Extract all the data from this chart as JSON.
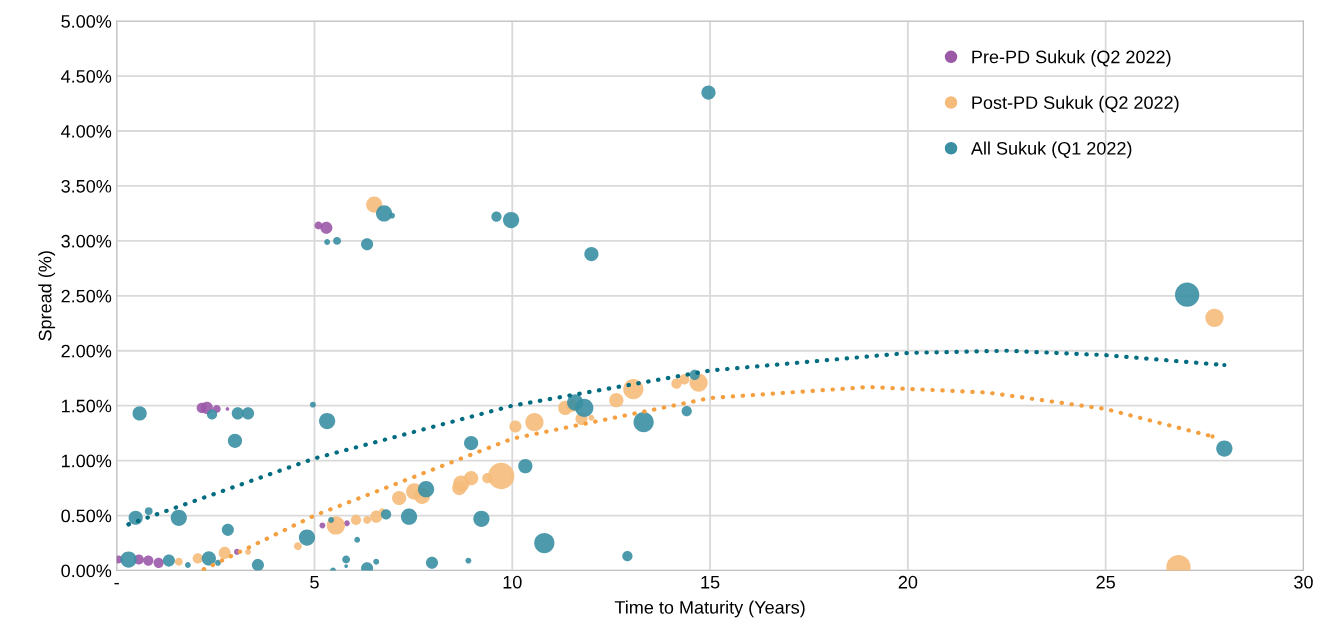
{
  "chart_data": {
    "type": "bubble",
    "xlabel": "Time to Maturity (Years)",
    "ylabel": "Spread (%)",
    "xlim": [
      0,
      30
    ],
    "ylim": [
      0,
      5
    ],
    "xticks": [
      {
        "value": 0,
        "label": "-"
      },
      5,
      10,
      15,
      20,
      25,
      30
    ],
    "yticks": [
      {
        "value": 0,
        "label": "0.00%"
      },
      {
        "value": 0.5,
        "label": "0.50%"
      },
      {
        "value": 1,
        "label": "1.00%"
      },
      {
        "value": 1.5,
        "label": "1.50%"
      },
      {
        "value": 2,
        "label": "2.00%"
      },
      {
        "value": 2.5,
        "label": "2.50%"
      },
      {
        "value": 3,
        "label": "3.00%"
      },
      {
        "value": 3.5,
        "label": "3.50%"
      },
      {
        "value": 4,
        "label": "4.00%"
      },
      {
        "value": 4.5,
        "label": "4.50%"
      },
      {
        "value": 5,
        "label": "5.00%"
      }
    ],
    "grid": true,
    "legend": "top right",
    "marker": "circle",
    "series": [
      {
        "name": "Pre-PD Sukuk (Q2 2022)",
        "color": "#9b59a8",
        "x": [
          0.05,
          0.3,
          0.56,
          0.8,
          1.06,
          2.15,
          2.28,
          2.53,
          2.8,
          3.04,
          5.2,
          5.82,
          5.1,
          5.3
        ],
        "values": [
          0.1,
          null,
          0.1,
          0.09,
          0.07,
          1.48,
          1.48,
          1.47,
          1.47,
          0.17,
          0.41,
          0.43,
          3.14,
          3.12
        ],
        "sizes": [
          0.09,
          null,
          0.15,
          0.15,
          0.15,
          0.15,
          0.21,
          0.09,
          0.02,
          0.05,
          0.05,
          0.05,
          0.09,
          0.21
        ]
      },
      {
        "name": "Post-PD Sukuk (Q2 2022)",
        "color": "#f5bb7a",
        "x": [
          1.57,
          2.05,
          2.73,
          3.32,
          4.58,
          5.54,
          6.05,
          6.33,
          6.56,
          6.71,
          7.14,
          7.52,
          7.72,
          8.66,
          8.71,
          8.96,
          9.37,
          9.72,
          10.08,
          10.56,
          11.34,
          11.52,
          11.75,
          12.0,
          12.63,
          13.06,
          14.15,
          14.35,
          14.71,
          6.51,
          27.75,
          26.84
        ],
        "values": [
          0.08,
          0.11,
          0.16,
          0.17,
          0.22,
          0.41,
          0.46,
          0.46,
          0.49,
          0.54,
          0.66,
          0.72,
          0.68,
          0.75,
          0.79,
          0.84,
          0.84,
          0.86,
          1.31,
          1.35,
          1.48,
          1.5,
          1.38,
          1.39,
          1.55,
          1.65,
          1.7,
          1.74,
          1.71,
          3.33,
          2.3,
          0.03
        ],
        "sizes": [
          0.09,
          0.15,
          0.21,
          0.05,
          0.09,
          0.48,
          0.15,
          0.09,
          0.21,
          0.05,
          0.29,
          0.38,
          0.38,
          0.29,
          0.38,
          0.29,
          0.15,
          1,
          0.21,
          0.48,
          0.29,
          0.21,
          0.21,
          0.05,
          0.29,
          0.59,
          0.15,
          0.15,
          0.48,
          0.38,
          0.48,
          0.85
        ]
      },
      {
        "name": "All Sukuk (Q1 2022)",
        "color": "#3a8fa3",
        "x": [
          0.3,
          0.58,
          0.48,
          0.81,
          1.32,
          1.8,
          1.57,
          2.33,
          2.41,
          3.06,
          3.32,
          2.99,
          2.81,
          2.56,
          3.57,
          4.81,
          4.96,
          5.32,
          5.42,
          5.47,
          5.8,
          5.8,
          6.08,
          6.33,
          6.56,
          6.81,
          7.39,
          7.82,
          7.97,
          8.89,
          8.96,
          9.22,
          10.33,
          10.81,
          12.91,
          11.59,
          11.82,
          13.32,
          14.41,
          14.61,
          5.32,
          5.57,
          6.33,
          6.76,
          6.96,
          9.6,
          9.97,
          12.0,
          14.96,
          27.06,
          28.0
        ],
        "values": [
          0.1,
          1.43,
          0.48,
          0.54,
          0.09,
          0.05,
          0.48,
          0.11,
          1.42,
          1.43,
          1.43,
          1.18,
          0.37,
          0.07,
          0.05,
          0.3,
          1.51,
          1.36,
          0.46,
          0.0,
          0.1,
          0.04,
          0.28,
          0.02,
          0.08,
          0.51,
          0.49,
          0.74,
          0.07,
          0.09,
          1.16,
          0.47,
          0.95,
          0.25,
          0.13,
          1.53,
          1.48,
          1.35,
          1.45,
          1.78,
          2.99,
          3.0,
          2.97,
          3.25,
          3.23,
          3.22,
          3.19,
          2.88,
          4.35,
          2.51,
          1.11
        ],
        "sizes": [
          0.38,
          0.29,
          0.29,
          0.09,
          0.21,
          0.05,
          0.38,
          0.29,
          0.15,
          0.21,
          0.21,
          0.29,
          0.21,
          0.05,
          0.21,
          0.38,
          0.05,
          0.38,
          0.05,
          0.05,
          0.09,
          0.02,
          0.05,
          0.21,
          0.05,
          0.15,
          0.38,
          0.38,
          0.21,
          0.05,
          0.29,
          0.38,
          0.29,
          0.59,
          0.15,
          0.38,
          0.48,
          0.59,
          0.15,
          0.15,
          0.05,
          0.09,
          0.21,
          0.38,
          0.05,
          0.15,
          0.38,
          0.29,
          0.29,
          0.85,
          0.38
        ]
      },
      {
        "type": "line",
        "color": "#006c80",
        "line_style": "dotted",
        "marker": "none",
        "x": [
          0.3,
          5,
          10,
          15,
          20,
          22.5,
          25,
          28
        ],
        "values": [
          0.42,
          1.02,
          1.5,
          1.82,
          1.98,
          2.0,
          1.96,
          1.87
        ]
      },
      {
        "type": "line",
        "color": "#f4a040",
        "line_style": "dotted",
        "marker": "none",
        "x": [
          2.2,
          5,
          10,
          15,
          19,
          22,
          25,
          27.7
        ],
        "values": [
          0.01,
          0.5,
          1.2,
          1.57,
          1.67,
          1.62,
          1.47,
          1.22
        ]
      }
    ]
  }
}
